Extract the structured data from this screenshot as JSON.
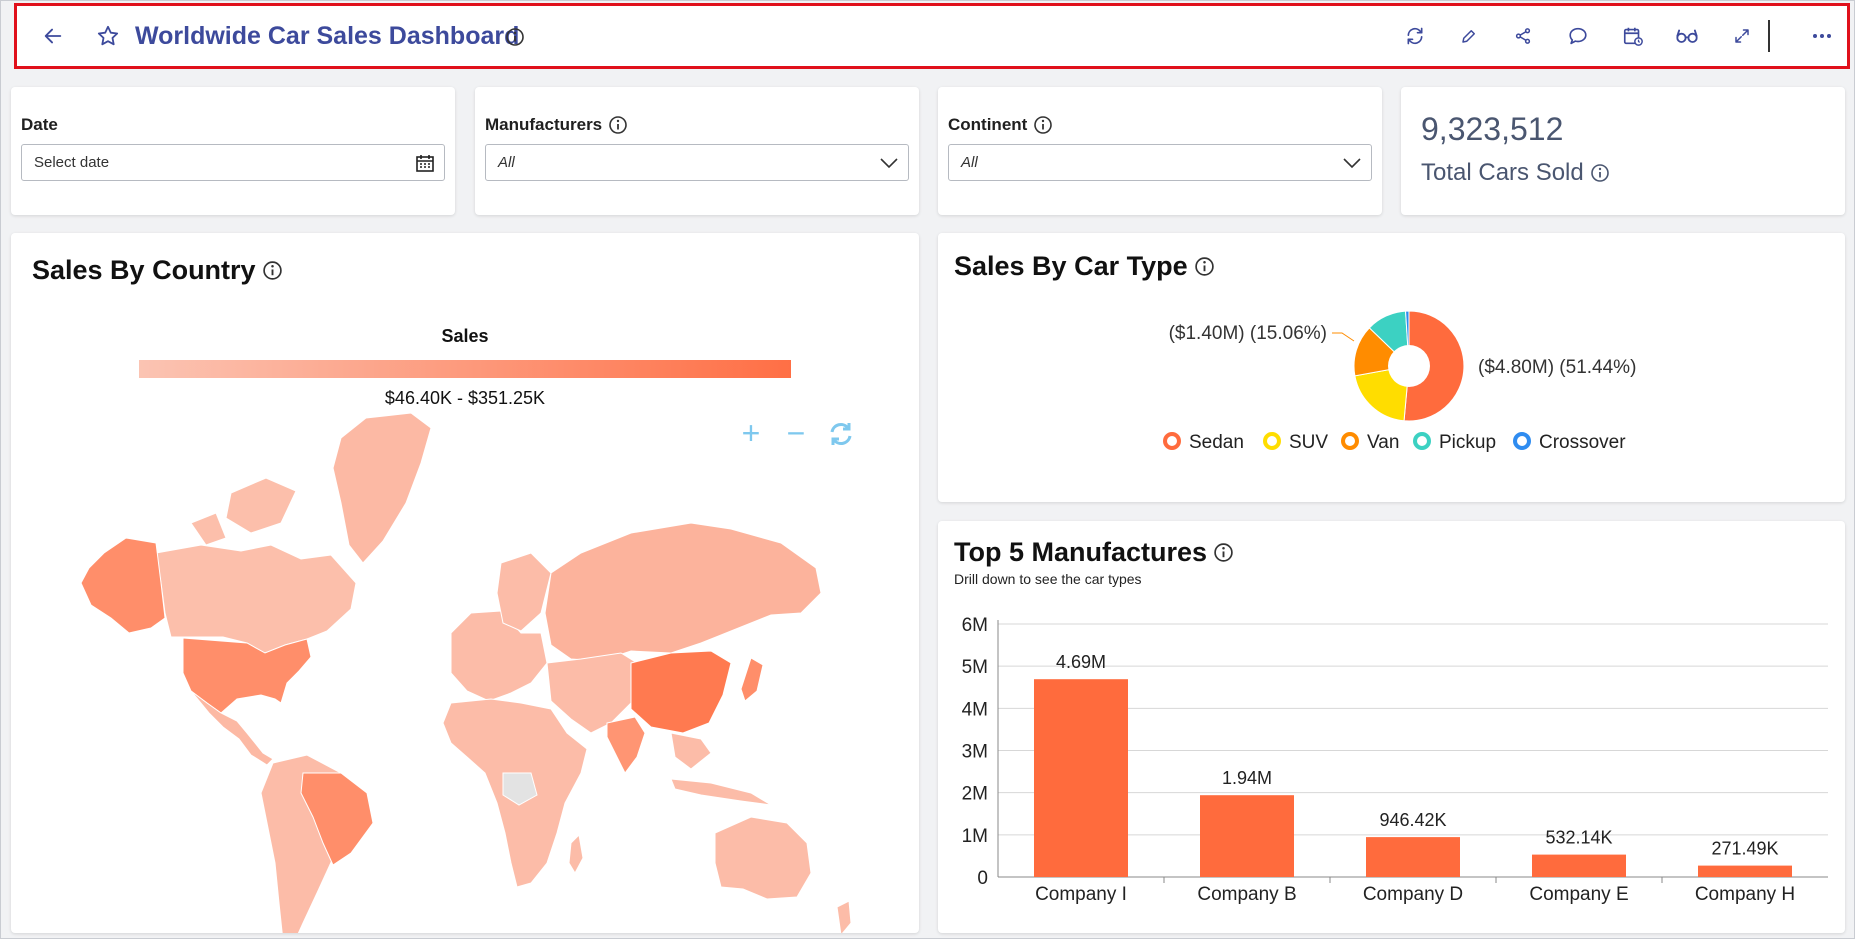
{
  "header": {
    "title": "Worldwide Car Sales Dashboard",
    "back_icon": "arrow-left-icon",
    "favorite_icon": "star-icon",
    "info_icon": "info-icon",
    "tools": [
      "refresh-icon",
      "edit-icon",
      "share-icon",
      "comment-icon",
      "schedule-icon",
      "view-icon",
      "expand-icon",
      "more-icon"
    ],
    "border_color": "#e0101b",
    "title_color": "#3d4a9c"
  },
  "filters": {
    "date": {
      "label": "Date",
      "placeholder": "Select date"
    },
    "manufacturers": {
      "label": "Manufacturers",
      "value": "All"
    },
    "continent": {
      "label": "Continent",
      "value": "All"
    }
  },
  "kpi": {
    "value": "9,323,512",
    "label": "Total Cars Sold"
  },
  "sales_by_country": {
    "title": "Sales By Country",
    "legend_title": "Sales",
    "legend_range": "$46.40K - $351.25K",
    "gradient": [
      "#fbc4b3",
      "#ff6f45"
    ],
    "zoom_in": "+",
    "zoom_out": "−"
  },
  "sales_by_car_type": {
    "title": "Sales By Car Type",
    "label_left": "($1.40M) (15.06%)",
    "label_right": "($4.80M) (51.44%)",
    "legend": [
      {
        "name": "Sedan",
        "color": "#ff6b3d"
      },
      {
        "name": "SUV",
        "color": "#ffdd00"
      },
      {
        "name": "Van",
        "color": "#ff8c00"
      },
      {
        "name": "Pickup",
        "color": "#3cd1c2"
      },
      {
        "name": "Crossover",
        "color": "#2f8cf0"
      }
    ]
  },
  "chart_data": [
    {
      "type": "pie",
      "title": "Sales By Car Type",
      "series": [
        {
          "name": "Sedan",
          "value": 51.44,
          "color": "#ff6b3d"
        },
        {
          "name": "SUV",
          "value": 20.7,
          "color": "#ffdd00"
        },
        {
          "name": "Van",
          "value": 15.06,
          "color": "#ff8c00"
        },
        {
          "name": "Pickup",
          "value": 11.8,
          "color": "#3cd1c2"
        },
        {
          "name": "Crossover",
          "value": 1.0,
          "color": "#2f8cf0"
        }
      ]
    },
    {
      "type": "bar",
      "title": "Top 5 Manufactures",
      "subtitle": "Drill down to see the car types",
      "categories": [
        "Company I",
        "Company B",
        "Company D",
        "Company E",
        "Company H"
      ],
      "values": [
        4690000,
        1940000,
        946420,
        532140,
        271490
      ],
      "data_labels": [
        "4.69M",
        "1.94M",
        "946.42K",
        "532.14K",
        "271.49K"
      ],
      "y_ticks": [
        "0",
        "1M",
        "2M",
        "3M",
        "4M",
        "5M",
        "6M"
      ],
      "ylim": [
        0,
        6000000
      ],
      "color": "#ff6b3d",
      "grid": true
    }
  ]
}
